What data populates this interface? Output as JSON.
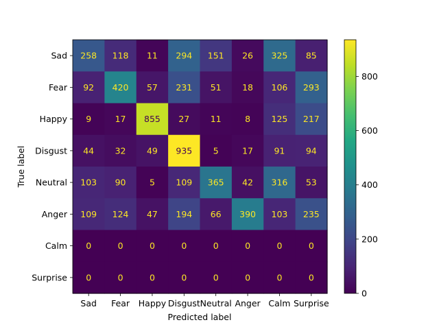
{
  "chart_data": {
    "type": "heatmap",
    "title": "",
    "xlabel": "Predicted label",
    "ylabel": "True label",
    "x_categories": [
      "Sad",
      "Fear",
      "Happy",
      "Disgust",
      "Neutral",
      "Anger",
      "Calm",
      "Surprise"
    ],
    "y_categories": [
      "Sad",
      "Fear",
      "Happy",
      "Disgust",
      "Neutral",
      "Anger",
      "Calm",
      "Surprise"
    ],
    "values": [
      [
        258,
        118,
        11,
        294,
        151,
        26,
        325,
        85
      ],
      [
        92,
        420,
        57,
        231,
        51,
        18,
        106,
        293
      ],
      [
        9,
        17,
        855,
        27,
        11,
        8,
        125,
        217
      ],
      [
        44,
        32,
        49,
        935,
        5,
        17,
        91,
        94
      ],
      [
        103,
        90,
        5,
        109,
        365,
        42,
        316,
        53
      ],
      [
        109,
        124,
        47,
        194,
        66,
        390,
        103,
        235
      ],
      [
        0,
        0,
        0,
        0,
        0,
        0,
        0,
        0
      ],
      [
        0,
        0,
        0,
        0,
        0,
        0,
        0,
        0
      ]
    ],
    "colormap": "viridis",
    "value_range": [
      0,
      935
    ],
    "colorbar_ticks": [
      0,
      200,
      400,
      600,
      800
    ],
    "cell_text_color_light": "#fde725",
    "cell_text_color_dark": "#440154",
    "grid": false
  }
}
